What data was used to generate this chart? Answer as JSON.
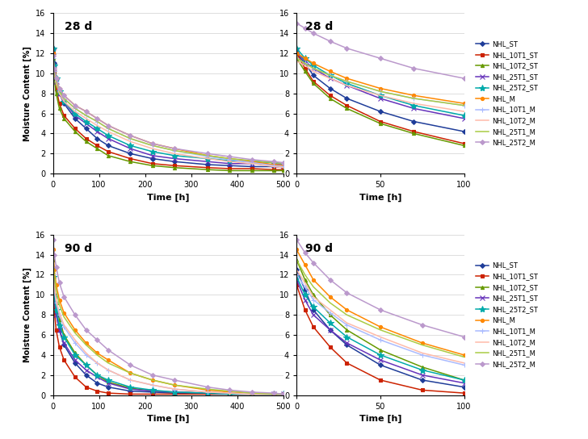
{
  "series_labels": [
    "NHL_ST",
    "NHL_10T1_ST",
    "NHL_10T2_ST",
    "NHL_25T1_ST",
    "NHL_25T2_ST",
    "NHL_M",
    "NHL_10T1_M",
    "NHL_10T2_M",
    "NHL_25T1_M",
    "NHL_25T2_M"
  ],
  "colors": [
    "#1f3d99",
    "#cc2200",
    "#669900",
    "#6633bb",
    "#00aaaa",
    "#ff8800",
    "#aabbff",
    "#ffbbaa",
    "#aacc44",
    "#bb99cc"
  ],
  "markers": [
    "D",
    "s",
    "^",
    "x",
    "*",
    "o",
    "+",
    null,
    null,
    "D"
  ],
  "marker_sizes": [
    3,
    3,
    3,
    4,
    5,
    3,
    4,
    0,
    0,
    3
  ],
  "linewidths": [
    1.2,
    1.2,
    1.2,
    1.2,
    1.2,
    1.2,
    1.2,
    1.2,
    1.2,
    1.2
  ],
  "d28_full": {
    "time": [
      0,
      3,
      7,
      14,
      24,
      48,
      72,
      96,
      120,
      168,
      216,
      264,
      336,
      384,
      432,
      480,
      500
    ],
    "NHL_ST": [
      12.5,
      11.0,
      9.5,
      8.0,
      7.0,
      5.5,
      4.5,
      3.5,
      2.8,
      2.0,
      1.5,
      1.2,
      0.9,
      0.8,
      0.7,
      0.7,
      0.6
    ],
    "NHL_10T1_ST": [
      12.0,
      10.0,
      8.5,
      7.0,
      5.8,
      4.5,
      3.5,
      2.8,
      2.2,
      1.5,
      1.0,
      0.8,
      0.6,
      0.5,
      0.5,
      0.4,
      0.4
    ],
    "NHL_10T2_ST": [
      11.5,
      9.5,
      8.0,
      6.5,
      5.5,
      4.2,
      3.2,
      2.5,
      1.8,
      1.2,
      0.8,
      0.6,
      0.4,
      0.3,
      0.3,
      0.3,
      0.3
    ],
    "NHL_25T1_ST": [
      12.2,
      10.5,
      9.2,
      8.0,
      7.2,
      5.8,
      5.0,
      4.2,
      3.5,
      2.5,
      1.8,
      1.5,
      1.2,
      1.0,
      1.0,
      0.9,
      0.9
    ],
    "NHL_25T2_ST": [
      12.5,
      10.8,
      9.5,
      8.2,
      7.2,
      6.0,
      5.2,
      4.5,
      3.8,
      2.8,
      2.2,
      1.8,
      1.5,
      1.3,
      1.2,
      1.1,
      1.0
    ],
    "NHL_M": [
      12.0,
      10.5,
      9.5,
      8.5,
      7.8,
      6.8,
      6.2,
      5.5,
      4.8,
      3.8,
      3.0,
      2.5,
      1.8,
      1.5,
      1.2,
      0.9,
      0.8
    ],
    "NHL_10T1_M": [
      11.5,
      10.2,
      9.2,
      8.2,
      7.5,
      6.5,
      5.8,
      5.2,
      4.5,
      3.5,
      2.8,
      2.3,
      1.7,
      1.4,
      1.1,
      0.8,
      0.7
    ],
    "NHL_10T2_M": [
      11.2,
      10.0,
      9.0,
      8.0,
      7.2,
      6.2,
      5.5,
      4.8,
      4.2,
      3.2,
      2.5,
      2.0,
      1.5,
      1.2,
      1.0,
      0.7,
      0.6
    ],
    "NHL_25T1_M": [
      11.5,
      10.2,
      9.2,
      8.2,
      7.5,
      6.5,
      5.8,
      5.2,
      4.5,
      3.5,
      2.8,
      2.3,
      1.8,
      1.5,
      1.3,
      1.1,
      1.0
    ],
    "NHL_25T2_M": [
      11.8,
      10.5,
      9.5,
      8.5,
      7.8,
      6.8,
      6.2,
      5.5,
      4.8,
      3.8,
      3.0,
      2.5,
      2.0,
      1.7,
      1.4,
      1.2,
      1.1
    ]
  },
  "d28_zoom": {
    "time": [
      0,
      5,
      10,
      20,
      30,
      50,
      70,
      100
    ],
    "NHL_ST": [
      12.0,
      11.0,
      9.8,
      8.5,
      7.5,
      6.2,
      5.2,
      4.2
    ],
    "NHL_10T1_ST": [
      12.0,
      10.5,
      9.2,
      7.8,
      6.8,
      5.2,
      4.2,
      3.0
    ],
    "NHL_10T2_ST": [
      11.5,
      10.2,
      9.0,
      7.5,
      6.5,
      5.0,
      4.0,
      2.8
    ],
    "NHL_25T1_ST": [
      12.2,
      11.2,
      10.5,
      9.5,
      8.8,
      7.5,
      6.5,
      5.5
    ],
    "NHL_25T2_ST": [
      12.5,
      11.5,
      10.8,
      9.8,
      9.0,
      7.8,
      6.8,
      5.8
    ],
    "NHL_M": [
      12.0,
      11.5,
      11.0,
      10.2,
      9.5,
      8.5,
      7.8,
      7.0
    ],
    "NHL_10T1_M": [
      11.5,
      11.0,
      10.5,
      9.8,
      9.2,
      8.2,
      7.5,
      6.8
    ],
    "NHL_10T2_M": [
      11.2,
      10.8,
      10.2,
      9.5,
      8.8,
      7.8,
      7.0,
      6.2
    ],
    "NHL_25T1_M": [
      11.5,
      11.0,
      10.5,
      9.8,
      9.2,
      8.2,
      7.5,
      6.8
    ],
    "NHL_25T2_M": [
      15.0,
      14.5,
      14.0,
      13.2,
      12.5,
      11.5,
      10.5,
      9.5
    ]
  },
  "d90_full": {
    "time": [
      0,
      3,
      7,
      14,
      24,
      48,
      72,
      96,
      120,
      168,
      216,
      264,
      336,
      384,
      432,
      480,
      500
    ],
    "NHL_ST": [
      12.5,
      10.0,
      8.2,
      6.5,
      5.0,
      3.2,
      2.0,
      1.2,
      0.8,
      0.4,
      0.3,
      0.2,
      0.1,
      0.1,
      0.1,
      0.1,
      0.1
    ],
    "NHL_10T1_ST": [
      11.0,
      8.5,
      6.5,
      4.8,
      3.5,
      1.8,
      0.8,
      0.4,
      0.2,
      0.1,
      0.1,
      0.1,
      0.1,
      0.1,
      0.1,
      0.1,
      0.1
    ],
    "NHL_10T2_ST": [
      13.5,
      11.0,
      9.2,
      7.5,
      6.0,
      4.2,
      3.0,
      2.0,
      1.3,
      0.7,
      0.4,
      0.3,
      0.2,
      0.1,
      0.1,
      0.1,
      0.1
    ],
    "NHL_25T1_ST": [
      11.5,
      9.5,
      8.0,
      6.5,
      5.2,
      3.5,
      2.5,
      1.8,
      1.2,
      0.6,
      0.4,
      0.3,
      0.2,
      0.1,
      0.1,
      0.1,
      0.1
    ],
    "NHL_25T2_ST": [
      11.8,
      9.8,
      8.5,
      7.0,
      5.8,
      4.0,
      3.0,
      2.0,
      1.5,
      0.8,
      0.5,
      0.3,
      0.2,
      0.1,
      0.1,
      0.1,
      0.1
    ],
    "NHL_M": [
      14.5,
      12.5,
      11.0,
      9.5,
      8.2,
      6.5,
      5.2,
      4.2,
      3.5,
      2.2,
      1.5,
      1.0,
      0.5,
      0.3,
      0.2,
      0.1,
      0.1
    ],
    "NHL_10T1_M": [
      12.0,
      10.5,
      9.2,
      8.0,
      6.8,
      5.2,
      4.0,
      3.2,
      2.5,
      1.5,
      1.0,
      0.6,
      0.3,
      0.2,
      0.1,
      0.1,
      0.1
    ],
    "NHL_10T2_M": [
      12.5,
      11.0,
      9.5,
      8.2,
      7.0,
      5.5,
      4.2,
      3.2,
      2.5,
      1.5,
      1.0,
      0.6,
      0.3,
      0.2,
      0.1,
      0.1,
      0.1
    ],
    "NHL_25T1_M": [
      13.5,
      12.0,
      10.5,
      9.0,
      7.8,
      6.2,
      5.0,
      4.0,
      3.2,
      2.2,
      1.5,
      1.0,
      0.6,
      0.4,
      0.2,
      0.1,
      0.1
    ],
    "NHL_25T2_M": [
      15.5,
      14.0,
      12.8,
      11.2,
      9.8,
      8.0,
      6.5,
      5.5,
      4.5,
      3.0,
      2.0,
      1.5,
      0.8,
      0.5,
      0.3,
      0.2,
      0.1
    ]
  },
  "d90_zoom": {
    "time": [
      0,
      5,
      10,
      20,
      30,
      50,
      75,
      100
    ],
    "NHL_ST": [
      12.5,
      10.5,
      8.5,
      6.5,
      5.0,
      3.0,
      1.5,
      0.8
    ],
    "NHL_10T1_ST": [
      11.0,
      8.5,
      6.8,
      4.8,
      3.2,
      1.5,
      0.5,
      0.2
    ],
    "NHL_10T2_ST": [
      13.5,
      11.5,
      10.0,
      8.0,
      6.5,
      4.5,
      2.8,
      1.5
    ],
    "NHL_25T1_ST": [
      11.5,
      9.5,
      8.0,
      6.5,
      5.2,
      3.5,
      2.0,
      1.2
    ],
    "NHL_25T2_ST": [
      11.8,
      10.0,
      8.8,
      7.2,
      5.8,
      4.0,
      2.5,
      1.5
    ],
    "NHL_M": [
      14.5,
      13.0,
      11.5,
      9.8,
      8.5,
      6.8,
      5.2,
      4.0
    ],
    "NHL_10T1_M": [
      12.0,
      10.8,
      9.5,
      8.2,
      7.0,
      5.5,
      4.0,
      3.0
    ],
    "NHL_10T2_M": [
      12.5,
      11.2,
      9.8,
      8.5,
      7.2,
      5.8,
      4.2,
      3.2
    ],
    "NHL_25T1_M": [
      13.5,
      12.0,
      10.8,
      9.2,
      8.0,
      6.5,
      5.0,
      3.8
    ],
    "NHL_25T2_M": [
      15.5,
      14.2,
      13.2,
      11.5,
      10.2,
      8.5,
      7.0,
      5.8
    ]
  },
  "xlim_full": [
    0,
    500
  ],
  "xlim_zoom": [
    0,
    100
  ],
  "ylim": [
    0,
    16
  ],
  "yticks": [
    0,
    2,
    4,
    6,
    8,
    10,
    12,
    14,
    16
  ],
  "xticks_full": [
    0,
    100,
    200,
    300,
    400,
    500
  ],
  "xticks_zoom": [
    0,
    50,
    100
  ],
  "ylabel": "Moisture Content [%]",
  "xlabel": "Time [h]",
  "label_28d": "28 d",
  "label_90d": "90 d"
}
